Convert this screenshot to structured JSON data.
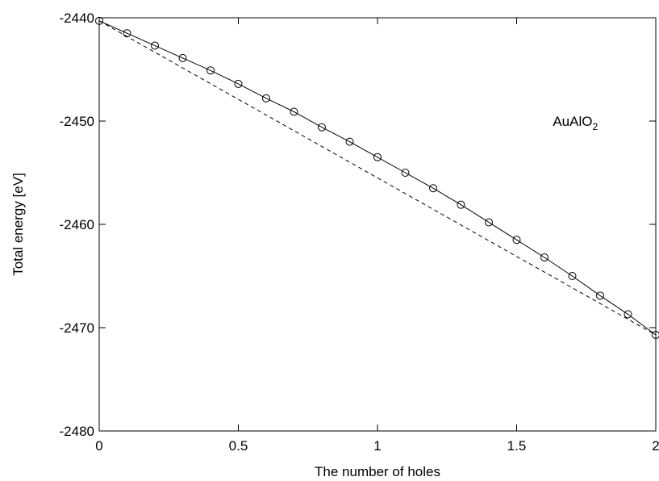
{
  "chart_data": {
    "type": "line",
    "title": "",
    "xlabel": "The number of holes",
    "ylabel": "Total energy [eV]",
    "xlim": [
      0,
      2
    ],
    "ylim": [
      -2480,
      -2440
    ],
    "x_ticks": [
      "0",
      "0.5",
      "1",
      "1.5",
      "2"
    ],
    "x_tick_values": [
      0,
      0.5,
      1,
      1.5,
      2
    ],
    "y_ticks": [
      "-2440",
      "-2450",
      "-2460",
      "-2470",
      "-2480"
    ],
    "y_tick_values": [
      -2440,
      -2450,
      -2460,
      -2470,
      -2480
    ],
    "grid": false,
    "annotation": {
      "text": "AuAlO",
      "subscript": "2",
      "x": 1.63,
      "y": -2450
    },
    "series": [
      {
        "style": "solid-with-circles",
        "color": "#000000",
        "x": [
          0,
          0.1,
          0.2,
          0.3,
          0.4,
          0.5,
          0.6,
          0.7,
          0.8,
          0.9,
          1.0,
          1.1,
          1.2,
          1.3,
          1.4,
          1.5,
          1.6,
          1.7,
          1.8,
          1.9,
          2.0
        ],
        "y": [
          -2440.3,
          -2441.5,
          -2442.7,
          -2443.9,
          -2445.1,
          -2446.4,
          -2447.8,
          -2449.1,
          -2450.6,
          -2452.0,
          -2453.5,
          -2455.0,
          -2456.5,
          -2458.1,
          -2459.8,
          -2461.5,
          -2463.2,
          -2465.0,
          -2466.9,
          -2468.7,
          -2470.7
        ]
      },
      {
        "style": "dashed",
        "color": "#000000",
        "x": [
          0,
          2
        ],
        "y": [
          -2440.3,
          -2470.7
        ]
      }
    ]
  }
}
